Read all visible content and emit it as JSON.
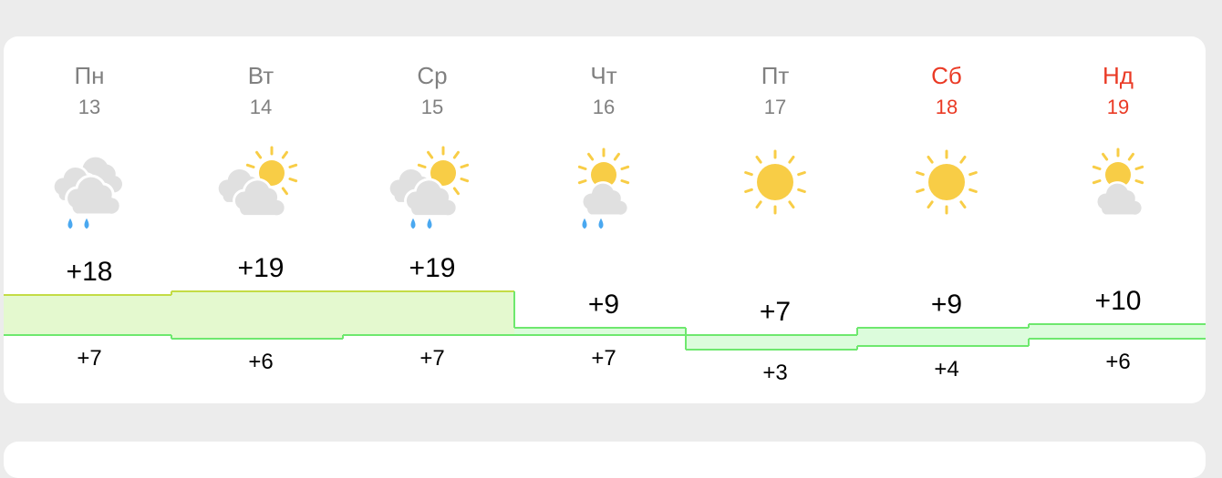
{
  "days": [
    {
      "name": "Пн",
      "date": "13",
      "icon": "cloudy-rain-icon",
      "high": "+18",
      "low": "+7",
      "weekend": false
    },
    {
      "name": "Вт",
      "date": "14",
      "icon": "partly-cloudy-icon",
      "high": "+19",
      "low": "+6",
      "weekend": false
    },
    {
      "name": "Ср",
      "date": "15",
      "icon": "partly-cloudy-rain-icon",
      "high": "+19",
      "low": "+7",
      "weekend": false
    },
    {
      "name": "Чт",
      "date": "16",
      "icon": "sun-cloud-rain-icon",
      "high": "+9",
      "low": "+7",
      "weekend": false
    },
    {
      "name": "Пт",
      "date": "17",
      "icon": "sun-icon",
      "high": "+7",
      "low": "+3",
      "weekend": false
    },
    {
      "name": "Сб",
      "date": "18",
      "icon": "sun-icon",
      "high": "+9",
      "low": "+4",
      "weekend": true
    },
    {
      "name": "Нд",
      "date": "19",
      "icon": "sun-cloud-icon",
      "high": "+10",
      "low": "+6",
      "weekend": true
    }
  ],
  "colors": {
    "weekend": "#ea3a25",
    "text_muted": "#808080",
    "sun": "#f8cd46",
    "cloud": "#e0e0e0",
    "rain": "#4aa8f0",
    "warm_fill": "#e4f9cf",
    "warm_stroke": "#c3dc45",
    "cool_fill": "#dcfcdc",
    "cool_stroke": "#6ee86e"
  }
}
